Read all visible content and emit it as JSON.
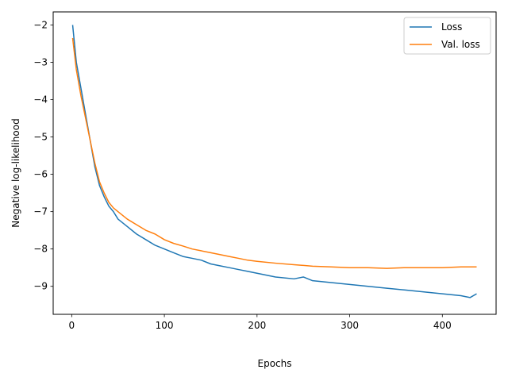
{
  "chart_data": {
    "type": "line",
    "title": "",
    "xlabel": "Epochs",
    "ylabel": "Negative log-likelihood",
    "xlim": [
      -20,
      458
    ],
    "ylim": [
      -9.75,
      -1.65
    ],
    "xticks": [
      0,
      100,
      200,
      300,
      400
    ],
    "xtick_labels": [
      "0",
      "100",
      "200",
      "300",
      "400"
    ],
    "yticks": [
      -2,
      -3,
      -4,
      -5,
      -6,
      -7,
      -8,
      -9
    ],
    "ytick_labels": [
      "−2",
      "−3",
      "−4",
      "−5",
      "−6",
      "−7",
      "−8",
      "−9"
    ],
    "grid": false,
    "legend_position": "top-right",
    "series": [
      {
        "name": "Loss",
        "color": "#1f77b4",
        "x": [
          1,
          5,
          10,
          15,
          20,
          25,
          30,
          35,
          40,
          45,
          50,
          60,
          70,
          80,
          90,
          100,
          110,
          120,
          130,
          140,
          150,
          160,
          170,
          180,
          190,
          200,
          220,
          240,
          250,
          260,
          280,
          300,
          320,
          340,
          360,
          380,
          400,
          420,
          430,
          437
        ],
        "y": [
          -2.0,
          -3.0,
          -3.7,
          -4.4,
          -5.1,
          -5.8,
          -6.3,
          -6.6,
          -6.85,
          -7.0,
          -7.2,
          -7.4,
          -7.6,
          -7.75,
          -7.9,
          -8.0,
          -8.1,
          -8.2,
          -8.25,
          -8.3,
          -8.4,
          -8.45,
          -8.5,
          -8.55,
          -8.6,
          -8.65,
          -8.75,
          -8.8,
          -8.75,
          -8.85,
          -8.9,
          -8.95,
          -9.0,
          -9.05,
          -9.1,
          -9.15,
          -9.2,
          -9.25,
          -9.3,
          -9.2
        ]
      },
      {
        "name": "Val. loss",
        "color": "#ff7f0e",
        "x": [
          1,
          5,
          10,
          15,
          20,
          25,
          30,
          35,
          40,
          45,
          50,
          60,
          70,
          80,
          90,
          100,
          110,
          120,
          130,
          140,
          150,
          160,
          170,
          180,
          190,
          200,
          220,
          240,
          260,
          280,
          300,
          320,
          340,
          360,
          380,
          400,
          420,
          437
        ],
        "y": [
          -2.35,
          -3.2,
          -3.9,
          -4.5,
          -5.1,
          -5.7,
          -6.2,
          -6.5,
          -6.75,
          -6.9,
          -7.0,
          -7.2,
          -7.35,
          -7.5,
          -7.6,
          -7.75,
          -7.85,
          -7.92,
          -8.0,
          -8.05,
          -8.1,
          -8.15,
          -8.2,
          -8.25,
          -8.3,
          -8.33,
          -8.38,
          -8.42,
          -8.46,
          -8.48,
          -8.5,
          -8.5,
          -8.52,
          -8.5,
          -8.5,
          -8.5,
          -8.48,
          -8.48
        ]
      }
    ]
  }
}
